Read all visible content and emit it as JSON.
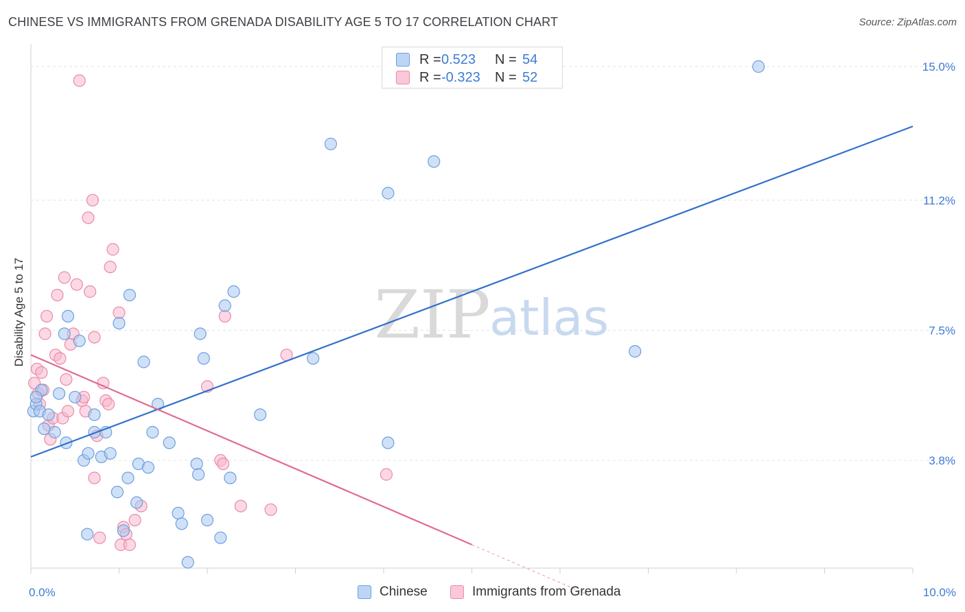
{
  "header": {
    "title": "CHINESE VS IMMIGRANTS FROM GRENADA DISABILITY AGE 5 TO 17 CORRELATION CHART",
    "source": "Source: ZipAtlas.com"
  },
  "watermark": {
    "zip": "ZIP",
    "atlas": "atlas"
  },
  "legend_top": {
    "rows": [
      {
        "r_label": "R =",
        "r_value": "0.523",
        "n_label": "N =",
        "n_value": "54"
      },
      {
        "r_label": "R =",
        "r_value": "-0.323",
        "n_label": "N =",
        "n_value": "52"
      }
    ]
  },
  "legend_bottom": {
    "items": [
      "Chinese",
      "Immigrants from Grenada"
    ]
  },
  "colors": {
    "blue_fill": "#a9c8f0",
    "blue_stroke": "#6b9fe0",
    "blue_line": "#3070cc",
    "pink_fill": "#f7b8cc",
    "pink_stroke": "#e98aa8",
    "pink_line": "#e06a94",
    "tick_label": "#3d7bd4",
    "grid": "#e3e3e3"
  },
  "chart_data": {
    "type": "scatter",
    "title": "CHINESE VS IMMIGRANTS FROM GRENADA DISABILITY AGE 5 TO 17 CORRELATION CHART",
    "xlabel": "",
    "ylabel": "Disability Age 5 to 17",
    "xlim": [
      0,
      10
    ],
    "ylim": [
      0,
      15.6
    ],
    "x_tick_labels": [
      {
        "value": 0,
        "label": "0.0%"
      },
      {
        "value": 10,
        "label": "10.0%"
      }
    ],
    "y_tick_labels": [
      {
        "value": 3.8,
        "label": "3.8%"
      },
      {
        "value": 7.5,
        "label": "7.5%"
      },
      {
        "value": 11.2,
        "label": "11.2%"
      },
      {
        "value": 15.0,
        "label": "15.0%"
      }
    ],
    "grid": true,
    "legend_position": "bottom",
    "series": [
      {
        "name": "Chinese",
        "r": 0.523,
        "n": 54,
        "trend": {
          "x0": 0,
          "y0": 3.9,
          "x1": 10,
          "y1": 13.3,
          "dashed_from": null
        },
        "points": [
          [
            0.03,
            5.2
          ],
          [
            0.06,
            5.4
          ],
          [
            0.1,
            5.2
          ],
          [
            0.12,
            5.8
          ],
          [
            0.2,
            5.1
          ],
          [
            0.27,
            4.6
          ],
          [
            0.32,
            5.7
          ],
          [
            0.4,
            4.3
          ],
          [
            0.42,
            7.9
          ],
          [
            0.5,
            5.6
          ],
          [
            0.55,
            7.2
          ],
          [
            0.38,
            7.4
          ],
          [
            0.6,
            3.8
          ],
          [
            0.65,
            4.0
          ],
          [
            0.72,
            4.6
          ],
          [
            0.72,
            5.1
          ],
          [
            0.8,
            3.9
          ],
          [
            0.85,
            4.6
          ],
          [
            0.9,
            4.0
          ],
          [
            0.98,
            2.9
          ],
          [
            1.0,
            7.7
          ],
          [
            1.1,
            3.3
          ],
          [
            1.12,
            8.5
          ],
          [
            1.2,
            2.6
          ],
          [
            1.22,
            3.7
          ],
          [
            1.28,
            6.6
          ],
          [
            1.33,
            3.6
          ],
          [
            1.38,
            4.6
          ],
          [
            1.44,
            5.4
          ],
          [
            1.57,
            4.3
          ],
          [
            1.67,
            2.3
          ],
          [
            1.71,
            2.0
          ],
          [
            1.78,
            0.9
          ],
          [
            1.88,
            3.7
          ],
          [
            1.9,
            3.4
          ],
          [
            1.92,
            7.4
          ],
          [
            1.96,
            6.7
          ],
          [
            2.0,
            2.1
          ],
          [
            2.15,
            1.6
          ],
          [
            2.2,
            8.2
          ],
          [
            2.26,
            3.3
          ],
          [
            2.3,
            8.6
          ],
          [
            2.6,
            5.1
          ],
          [
            3.2,
            6.7
          ],
          [
            3.4,
            12.8
          ],
          [
            4.05,
            11.4
          ],
          [
            4.05,
            4.3
          ],
          [
            4.57,
            12.3
          ],
          [
            6.85,
            6.9
          ],
          [
            8.25,
            15.0
          ],
          [
            0.64,
            1.7
          ],
          [
            1.05,
            1.8
          ],
          [
            0.15,
            4.7
          ],
          [
            0.06,
            5.6
          ]
        ]
      },
      {
        "name": "Immigrants from Grenada",
        "r": -0.323,
        "n": 52,
        "trend": {
          "x0": 0,
          "y0": 6.8,
          "x1": 6.3,
          "y1": 0,
          "dashed_from": 5.0
        },
        "points": [
          [
            0.04,
            6.0
          ],
          [
            0.07,
            6.4
          ],
          [
            0.08,
            5.7
          ],
          [
            0.1,
            5.4
          ],
          [
            0.12,
            6.3
          ],
          [
            0.14,
            5.8
          ],
          [
            0.16,
            7.4
          ],
          [
            0.18,
            7.9
          ],
          [
            0.2,
            4.8
          ],
          [
            0.22,
            4.4
          ],
          [
            0.25,
            5.0
          ],
          [
            0.28,
            6.8
          ],
          [
            0.3,
            8.5
          ],
          [
            0.33,
            6.7
          ],
          [
            0.36,
            5.0
          ],
          [
            0.38,
            9.0
          ],
          [
            0.4,
            6.1
          ],
          [
            0.42,
            5.2
          ],
          [
            0.45,
            7.1
          ],
          [
            0.48,
            7.4
          ],
          [
            0.52,
            8.8
          ],
          [
            0.55,
            14.6
          ],
          [
            0.58,
            5.5
          ],
          [
            0.6,
            5.6
          ],
          [
            0.62,
            5.2
          ],
          [
            0.65,
            10.7
          ],
          [
            0.67,
            8.6
          ],
          [
            0.7,
            11.2
          ],
          [
            0.72,
            7.3
          ],
          [
            0.75,
            4.5
          ],
          [
            0.72,
            3.3
          ],
          [
            0.78,
            1.6
          ],
          [
            0.82,
            6.0
          ],
          [
            0.85,
            5.5
          ],
          [
            0.88,
            5.4
          ],
          [
            0.9,
            9.3
          ],
          [
            0.93,
            9.8
          ],
          [
            1.0,
            8.0
          ],
          [
            1.02,
            1.4
          ],
          [
            1.05,
            1.9
          ],
          [
            1.08,
            1.7
          ],
          [
            1.12,
            1.4
          ],
          [
            1.18,
            2.1
          ],
          [
            1.25,
            2.5
          ],
          [
            2.0,
            5.9
          ],
          [
            2.15,
            3.8
          ],
          [
            2.18,
            3.7
          ],
          [
            2.2,
            7.9
          ],
          [
            2.38,
            2.5
          ],
          [
            2.72,
            2.4
          ],
          [
            2.9,
            6.8
          ],
          [
            4.03,
            3.4
          ]
        ]
      }
    ]
  }
}
